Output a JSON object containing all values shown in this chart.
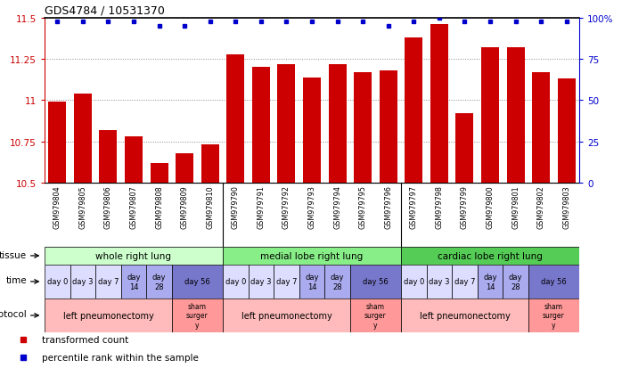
{
  "title": "GDS4784 / 10531370",
  "samples": [
    "GSM979804",
    "GSM979805",
    "GSM979806",
    "GSM979807",
    "GSM979808",
    "GSM979809",
    "GSM979810",
    "GSM979790",
    "GSM979791",
    "GSM979792",
    "GSM979793",
    "GSM979794",
    "GSM979795",
    "GSM979796",
    "GSM979797",
    "GSM979798",
    "GSM979799",
    "GSM979800",
    "GSM979801",
    "GSM979802",
    "GSM979803"
  ],
  "bar_values": [
    10.99,
    11.04,
    10.82,
    10.78,
    10.62,
    10.68,
    10.73,
    11.28,
    11.2,
    11.22,
    11.14,
    11.22,
    11.17,
    11.18,
    11.38,
    11.46,
    10.92,
    11.32,
    11.32,
    11.17,
    11.13
  ],
  "percentile_values": [
    98,
    98,
    98,
    98,
    95,
    95,
    98,
    98,
    98,
    98,
    98,
    98,
    98,
    95,
    98,
    100,
    98,
    98,
    98,
    98,
    98
  ],
  "ymin": 10.5,
  "ymax": 11.5,
  "yticks": [
    10.5,
    10.75,
    11.0,
    11.25,
    11.5
  ],
  "ytick_labels": [
    "10.5",
    "10.75",
    "11",
    "11.25",
    "11.5"
  ],
  "right_yticks": [
    0,
    25,
    50,
    75,
    100
  ],
  "right_ytick_labels": [
    "0",
    "25",
    "50",
    "75",
    "100%"
  ],
  "bar_color": "#cc0000",
  "dot_color": "#0000cc",
  "bar_width": 0.7,
  "tissue_groups": [
    {
      "label": "whole right lung",
      "start": 0,
      "end": 7,
      "color": "#ccffcc"
    },
    {
      "label": "medial lobe right lung",
      "start": 7,
      "end": 14,
      "color": "#88ee88"
    },
    {
      "label": "cardiac lobe right lung",
      "start": 14,
      "end": 21,
      "color": "#55cc55"
    }
  ],
  "time_groups": [
    {
      "label": "day 0",
      "start": 0,
      "end": 1,
      "color": "#ddddff"
    },
    {
      "label": "day 3",
      "start": 1,
      "end": 2,
      "color": "#ddddff"
    },
    {
      "label": "day 7",
      "start": 2,
      "end": 3,
      "color": "#ddddff"
    },
    {
      "label": "day\n14",
      "start": 3,
      "end": 4,
      "color": "#aaaaee"
    },
    {
      "label": "day\n28",
      "start": 4,
      "end": 5,
      "color": "#aaaaee"
    },
    {
      "label": "day 56",
      "start": 5,
      "end": 7,
      "color": "#7777cc"
    },
    {
      "label": "day 0",
      "start": 7,
      "end": 8,
      "color": "#ddddff"
    },
    {
      "label": "day 3",
      "start": 8,
      "end": 9,
      "color": "#ddddff"
    },
    {
      "label": "day 7",
      "start": 9,
      "end": 10,
      "color": "#ddddff"
    },
    {
      "label": "day\n14",
      "start": 10,
      "end": 11,
      "color": "#aaaaee"
    },
    {
      "label": "day\n28",
      "start": 11,
      "end": 12,
      "color": "#aaaaee"
    },
    {
      "label": "day 56",
      "start": 12,
      "end": 14,
      "color": "#7777cc"
    },
    {
      "label": "day 0",
      "start": 14,
      "end": 15,
      "color": "#ddddff"
    },
    {
      "label": "day 3",
      "start": 15,
      "end": 16,
      "color": "#ddddff"
    },
    {
      "label": "day 7",
      "start": 16,
      "end": 17,
      "color": "#ddddff"
    },
    {
      "label": "day\n14",
      "start": 17,
      "end": 18,
      "color": "#aaaaee"
    },
    {
      "label": "day\n28",
      "start": 18,
      "end": 19,
      "color": "#aaaaee"
    },
    {
      "label": "day 56",
      "start": 19,
      "end": 21,
      "color": "#7777cc"
    }
  ],
  "protocol_groups": [
    {
      "label": "left pneumonectomy",
      "start": 0,
      "end": 5,
      "color": "#ffbbbb"
    },
    {
      "label": "sham\nsurger\ny",
      "start": 5,
      "end": 7,
      "color": "#ff9999"
    },
    {
      "label": "left pneumonectomy",
      "start": 7,
      "end": 12,
      "color": "#ffbbbb"
    },
    {
      "label": "sham\nsurger\ny",
      "start": 12,
      "end": 14,
      "color": "#ff9999"
    },
    {
      "label": "left pneumonectomy",
      "start": 14,
      "end": 19,
      "color": "#ffbbbb"
    },
    {
      "label": "sham\nsurger\ny",
      "start": 19,
      "end": 21,
      "color": "#ff9999"
    }
  ],
  "legend_items": [
    {
      "label": "transformed count",
      "color": "#cc0000"
    },
    {
      "label": "percentile rank within the sample",
      "color": "#0000cc"
    }
  ],
  "bg_color": "#ffffff",
  "grid_color": "#888888",
  "axis_color_left": "#cc0000",
  "axis_color_right": "#0000cc",
  "xtick_bg": "#cccccc",
  "group_divider_color": "#000000"
}
